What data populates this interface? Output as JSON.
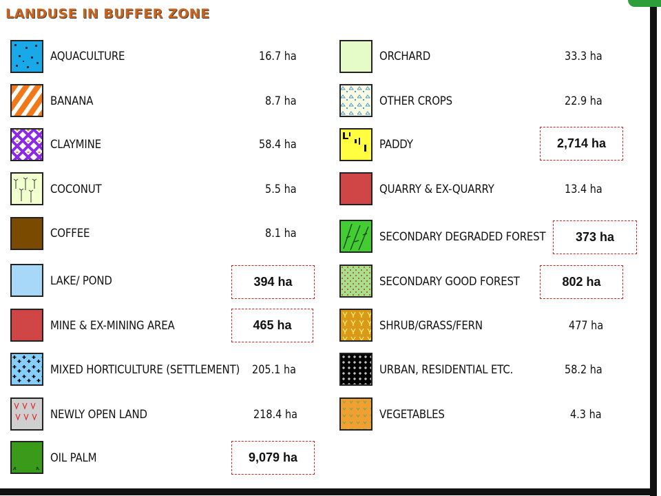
{
  "title": "LANDUSE IN BUFFER ZONE",
  "left_column": [
    {
      "label": "AQUACULTURE",
      "area": "16.7 ha",
      "pattern": "aquaculture"
    },
    {
      "label": "BANANA",
      "area": "8.7 ha",
      "pattern": "banana"
    },
    {
      "label": "CLAYMINE",
      "area": "58.4 ha",
      "pattern": "claymine"
    },
    {
      "label": "COCONUT",
      "area": "5.5 ha",
      "pattern": "coconut"
    },
    {
      "label": "COFFEE",
      "area": "8.1 ha",
      "pattern": "coffee"
    },
    {
      "label": "LAKE/ POND",
      "area": "",
      "pattern": "lake"
    },
    {
      "label": "MINE & EX-MINING AREA",
      "area": "",
      "pattern": "mine"
    },
    {
      "label": "MIXED HORTICULTURE (SETTLEMENT)",
      "area": "205.1 ha",
      "pattern": "mixed"
    },
    {
      "label": "NEWLY OPEN LAND",
      "area": "218.4 ha",
      "pattern": "newland"
    },
    {
      "label": "OIL PALM",
      "area": "",
      "pattern": "oilpalm"
    }
  ],
  "right_column": [
    {
      "label": "ORCHARD",
      "area": "33.3 ha",
      "pattern": "orchard"
    },
    {
      "label": "OTHER CROPS",
      "area": "22.9 ha",
      "pattern": "othercrops"
    },
    {
      "label": "PADDY",
      "area": "",
      "pattern": "paddy"
    },
    {
      "label": "QUARRY & EX-QUARRY",
      "area": "13.4 ha",
      "pattern": "quarry"
    },
    {
      "label": "SECONDARY DEGRADED FOREST",
      "area": "",
      "pattern": "degraded"
    },
    {
      "label": "SECONDARY GOOD FOREST",
      "area": "",
      "pattern": "goodforest"
    },
    {
      "label": "SHRUB/GRASS/FERN",
      "area": "477 ha",
      "pattern": "shrub"
    },
    {
      "label": "URBAN, RESIDENTIAL ETC.",
      "area": "58.2 ha",
      "pattern": "urban"
    },
    {
      "label": "VEGETABLES",
      "area": "4.3 ha",
      "pattern": "vegetables"
    }
  ],
  "callouts": {
    "lake_pond": "394 ha",
    "mine": "465 ha",
    "oil_palm": "9,079 ha",
    "paddy": "2,714 ha",
    "degraded_forest": "373 ha",
    "good_forest": "802 ha"
  },
  "colors": {
    "title": "#c8641e",
    "callout_border": "#d02020",
    "frame": "#111111",
    "corner_tab": "#2e9e3a"
  }
}
